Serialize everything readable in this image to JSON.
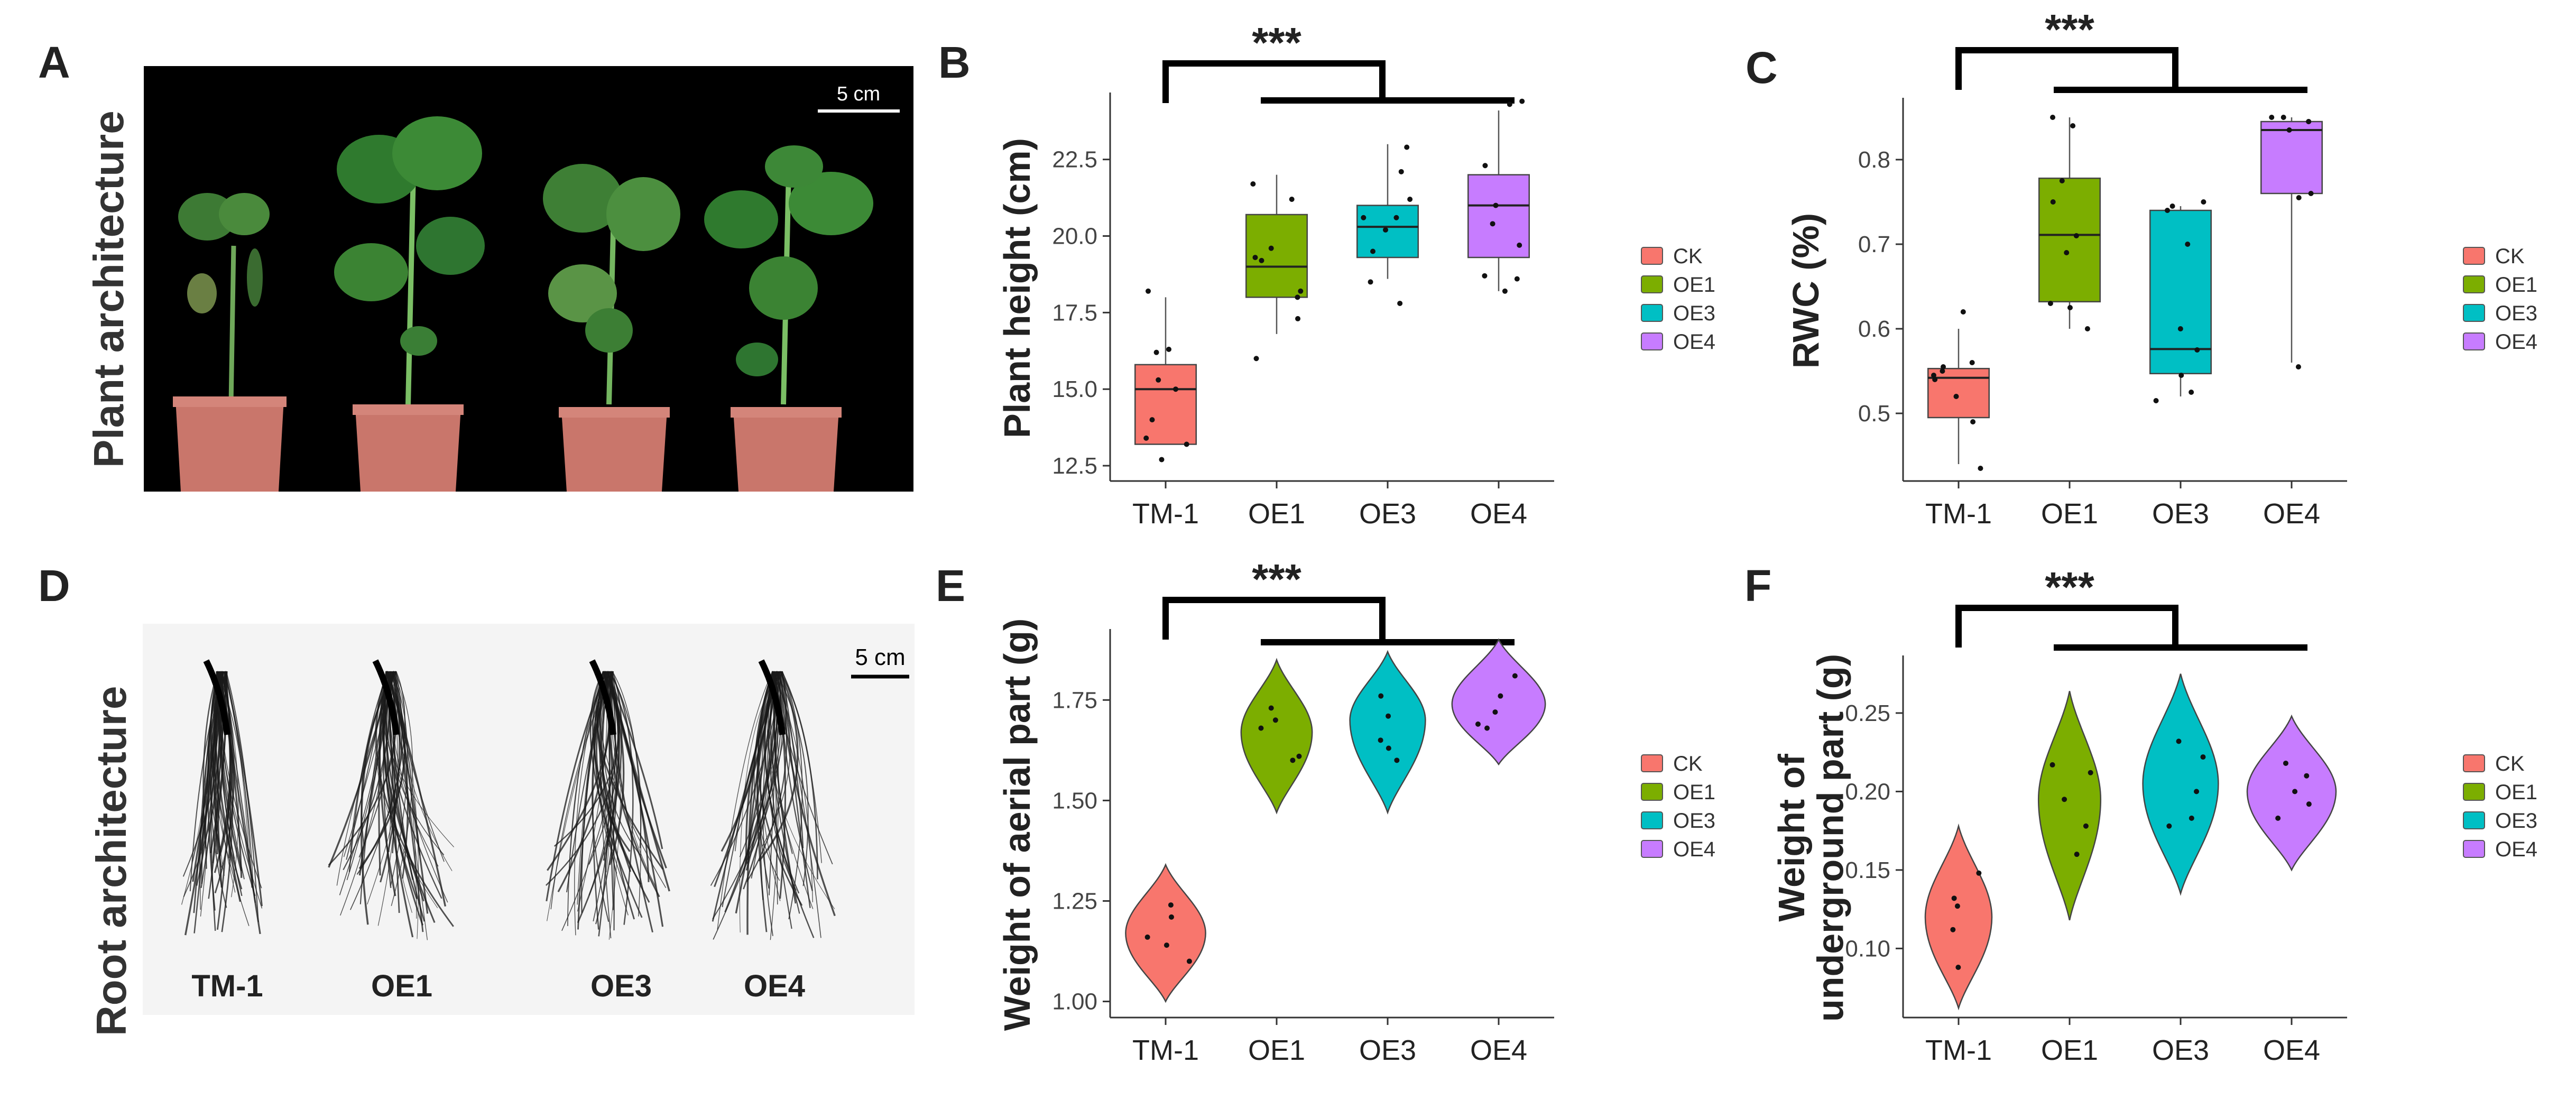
{
  "panels": {
    "A": "A",
    "B": "B",
    "C": "C",
    "D": "D",
    "E": "E",
    "F": "F"
  },
  "panelA": {
    "title": "Plant architecture",
    "scale": "5 cm"
  },
  "panelD": {
    "title": "Root architecture",
    "scale": "5 cm",
    "labels": [
      "TM-1",
      "OE1",
      "OE3",
      "OE4"
    ]
  },
  "colors": {
    "CK": "#F8766D",
    "OE1": "#7CAE00",
    "OE3": "#00BFC4",
    "OE4": "#C77CFF"
  },
  "chart_data": [
    {
      "id": "B",
      "type": "box",
      "ylabel": "Plant height (cm)",
      "categories": [
        "TM-1",
        "OE1",
        "OE3",
        "OE4"
      ],
      "yticks": [
        "12.5",
        "15.0",
        "17.5",
        "20.0",
        "22.5"
      ],
      "ylim": [
        12.0,
        24.6
      ],
      "significance": "***",
      "legend": [
        "CK",
        "OE1",
        "OE3",
        "OE4"
      ],
      "boxes": [
        {
          "min": 13.2,
          "q1": 13.2,
          "median": 15.0,
          "q3": 15.8,
          "max": 18.0
        },
        {
          "min": 16.8,
          "q1": 18.0,
          "median": 19.0,
          "q3": 20.7,
          "max": 22.0
        },
        {
          "min": 18.6,
          "q1": 19.3,
          "median": 20.3,
          "q3": 21.0,
          "max": 23.0
        },
        {
          "min": 18.2,
          "q1": 19.3,
          "median": 21.0,
          "q3": 22.0,
          "max": 24.1
        }
      ],
      "points": [
        [
          12.7,
          13.2,
          13.4,
          14.0,
          15.0,
          15.3,
          16.2,
          16.3,
          18.2
        ],
        [
          16.0,
          17.3,
          18.0,
          18.2,
          19.2,
          19.3,
          19.6,
          21.2,
          21.7
        ],
        [
          17.8,
          18.5,
          19.5,
          20.2,
          20.6,
          20.6,
          21.2,
          22.1,
          22.9
        ],
        [
          18.2,
          18.6,
          18.7,
          19.7,
          20.4,
          21.0,
          22.3,
          24.3,
          24.4
        ]
      ]
    },
    {
      "id": "C",
      "type": "box",
      "ylabel": "RWC (%)",
      "categories": [
        "TM-1",
        "OE1",
        "OE3",
        "OE4"
      ],
      "yticks": [
        "0.5",
        "0.6",
        "0.7",
        "0.8"
      ],
      "ylim": [
        0.42,
        0.87
      ],
      "significance": "***",
      "legend": [
        "CK",
        "OE1",
        "OE3",
        "OE4"
      ],
      "boxes": [
        {
          "min": 0.44,
          "q1": 0.495,
          "median": 0.542,
          "q3": 0.553,
          "max": 0.6
        },
        {
          "min": 0.6,
          "q1": 0.632,
          "median": 0.711,
          "q3": 0.778,
          "max": 0.85
        },
        {
          "min": 0.52,
          "q1": 0.547,
          "median": 0.576,
          "q3": 0.74,
          "max": 0.745
        },
        {
          "min": 0.56,
          "q1": 0.76,
          "median": 0.835,
          "q3": 0.845,
          "max": 0.85
        }
      ],
      "points": [
        [
          0.435,
          0.49,
          0.52,
          0.54,
          0.545,
          0.55,
          0.555,
          0.56,
          0.62
        ],
        [
          0.6,
          0.625,
          0.63,
          0.69,
          0.71,
          0.75,
          0.775,
          0.84,
          0.85
        ],
        [
          0.515,
          0.525,
          0.545,
          0.575,
          0.6,
          0.7,
          0.74,
          0.745,
          0.75
        ],
        [
          0.555,
          0.755,
          0.76,
          0.835,
          0.845,
          0.845,
          0.85,
          0.85
        ]
      ]
    },
    {
      "id": "E",
      "type": "violin",
      "ylabel": "Weight of aerial part (g)",
      "categories": [
        "TM-1",
        "OE1",
        "OE3",
        "OE4"
      ],
      "yticks": [
        "1.00",
        "1.25",
        "1.50",
        "1.75"
      ],
      "ylim": [
        0.96,
        1.92
      ],
      "significance": "***",
      "legend": [
        "CK",
        "OE1",
        "OE3",
        "OE4"
      ],
      "violins": [
        {
          "lo": 1.0,
          "hi": 1.34,
          "peak": 1.17,
          "width": 0.36
        },
        {
          "lo": 1.47,
          "hi": 1.85,
          "peak": 1.67,
          "width": 0.32
        },
        {
          "lo": 1.47,
          "hi": 1.87,
          "peak": 1.7,
          "width": 0.34
        },
        {
          "lo": 1.59,
          "hi": 1.9,
          "peak": 1.74,
          "width": 0.42
        }
      ],
      "points": [
        [
          1.1,
          1.14,
          1.16,
          1.21,
          1.24
        ],
        [
          1.6,
          1.61,
          1.68,
          1.7,
          1.73
        ],
        [
          1.6,
          1.63,
          1.65,
          1.71,
          1.76
        ],
        [
          1.68,
          1.69,
          1.72,
          1.76,
          1.81
        ]
      ]
    },
    {
      "id": "F",
      "type": "violin",
      "ylabel": "Weight of underground part (g)",
      "ylabel_lines": [
        "Weight of",
        "underground part (g)"
      ],
      "categories": [
        "TM-1",
        "OE1",
        "OE3",
        "OE4"
      ],
      "yticks": [
        "0.10",
        "0.15",
        "0.20",
        "0.25"
      ],
      "ylim": [
        0.056,
        0.285
      ],
      "significance": "***",
      "legend": [
        "CK",
        "OE1",
        "OE3",
        "OE4"
      ],
      "violins": [
        {
          "lo": 0.062,
          "hi": 0.178,
          "peak": 0.12,
          "width": 0.3
        },
        {
          "lo": 0.118,
          "hi": 0.264,
          "peak": 0.195,
          "width": 0.28
        },
        {
          "lo": 0.135,
          "hi": 0.275,
          "peak": 0.205,
          "width": 0.34
        },
        {
          "lo": 0.15,
          "hi": 0.248,
          "peak": 0.2,
          "width": 0.4
        }
      ],
      "points": [
        [
          0.088,
          0.112,
          0.127,
          0.132,
          0.148
        ],
        [
          0.16,
          0.178,
          0.195,
          0.212,
          0.217
        ],
        [
          0.178,
          0.183,
          0.2,
          0.222,
          0.232
        ],
        [
          0.183,
          0.192,
          0.2,
          0.21,
          0.218
        ]
      ]
    }
  ]
}
